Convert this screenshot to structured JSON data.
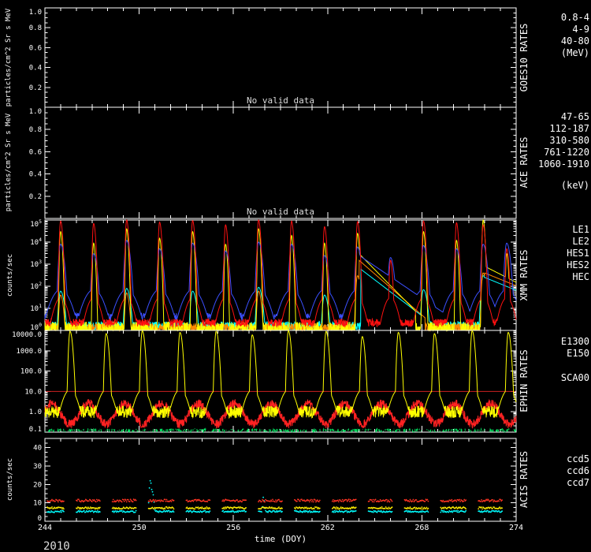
{
  "chart_data": {
    "type": "line",
    "year": "2010",
    "x_axis": {
      "label": "time (DOY)",
      "min": 244,
      "max": 274,
      "labeled_ticks": [
        244,
        250,
        256,
        262,
        268,
        274
      ],
      "tick_step": 1
    },
    "panels": [
      {
        "id": "goes10",
        "title": "GOES10 RATES",
        "ylabel": "particles/cm^2 Sr s MeV",
        "scale": "linear",
        "ylim": [
          0,
          1
        ],
        "yticks": [
          0,
          0.2,
          0.4,
          0.6,
          0.8,
          1.0
        ],
        "ytick_labels": [
          "",
          "0.2",
          "0.4",
          "0.6",
          "0.8",
          "1.0"
        ],
        "note": "No valid data",
        "right_labels": [
          {
            "text": "0.8-4",
            "color": "#8f8fff"
          },
          {
            "text": "4-9",
            "color": "#00ff00"
          },
          {
            "text": "40-80",
            "color": "#3c3cff"
          },
          {
            "text": "(MeV)",
            "color": "#ffffff"
          }
        ],
        "series": []
      },
      {
        "id": "ace",
        "title": "ACE RATES",
        "ylabel": "particles/cm^2 Sr s MeV",
        "scale": "linear",
        "ylim": [
          0,
          1
        ],
        "yticks": [
          0,
          0.2,
          0.4,
          0.6,
          0.8,
          1.0
        ],
        "ytick_labels": [
          "",
          "0.2",
          "0.4",
          "0.6",
          "0.8",
          "1.0"
        ],
        "note": "No valid data",
        "right_labels": [
          {
            "text": "47-65",
            "color": "#00ff00"
          },
          {
            "text": "112-187",
            "color": "#ffffff"
          },
          {
            "text": "310-580",
            "color": "#ff9900"
          },
          {
            "text": "761-1220",
            "color": "#dddddd"
          },
          {
            "text": "1060-1910",
            "color": "#ff2222"
          },
          {
            "text": "(keV)",
            "color": "#ffffff",
            "gap_before": 12
          }
        ],
        "series": []
      },
      {
        "id": "xmm",
        "title": "XMM RATES",
        "ylabel": "counts/sec",
        "scale": "log",
        "ylim": [
          1,
          100000
        ],
        "yticks": [
          1,
          10,
          100,
          1000,
          10000,
          100000
        ],
        "ytick_labels": [
          "10^0",
          "10^1",
          "10^2",
          "10^3",
          "10^4",
          "10^5"
        ],
        "spike_default_width": 0.04,
        "right_labels": [
          {
            "text": "LE1",
            "color": "#3c50ff"
          },
          {
            "text": "LE2",
            "color": "#00ffff"
          },
          {
            "text": "HES1",
            "color": "#ff1010"
          },
          {
            "text": "HES2",
            "color": "#ff8800"
          },
          {
            "text": "HEC",
            "color": "#ffffcc"
          }
        ],
        "series": [
          {
            "name": "LE2",
            "color": "#00ffff",
            "baseline": 1.6,
            "noise": 0.2,
            "spike_width": 0.08,
            "spikes": [
              [
                245.0,
                60
              ],
              [
                249.2,
                80
              ],
              [
                253.4,
                60
              ],
              [
                257.6,
                90
              ],
              [
                261.8,
                40
              ],
              [
                268.1,
                70
              ],
              [
                271.9,
                300
              ]
            ],
            "decays": [
              [
                264.1,
                600,
                0.8
              ],
              [
                272.0,
                250,
                1.5
              ]
            ]
          },
          {
            "name": "HES2",
            "color": "#ff8800",
            "baseline": 1.3,
            "noise": 0.2,
            "spike_width": 0.06,
            "spikes": [
              [
                245.0,
                40
              ],
              [
                249.2,
                50
              ],
              [
                257.6,
                60
              ],
              [
                263.9,
                300
              ],
              [
                271.9,
                400
              ]
            ],
            "decays": [
              [
                264.0,
                1500,
                0.7
              ],
              [
                272.0,
                400,
                1.5
              ]
            ]
          },
          {
            "name": "HEC",
            "color": "#ffff00",
            "baseline": 1.1,
            "noise": 0.35,
            "spike_width": 0.035,
            "spikes": [
              [
                245.0,
                30000
              ],
              [
                247.1,
                9000
              ],
              [
                249.2,
                40000
              ],
              [
                251.3,
                15000
              ],
              [
                253.4,
                30000
              ],
              [
                255.5,
                8000
              ],
              [
                257.6,
                40000
              ],
              [
                259.7,
                20000
              ],
              [
                261.8,
                9000
              ],
              [
                263.9,
                25000
              ],
              [
                268.1,
                30000
              ],
              [
                270.2,
                12000
              ],
              [
                271.9,
                100000
              ],
              [
                273.4,
                3000
              ]
            ],
            "decays": [
              [
                264.0,
                3000,
                0.6
              ],
              [
                272.0,
                800,
                1.2
              ]
            ]
          },
          {
            "name": "LE1",
            "color": "#3c50ff",
            "baseline": 4,
            "noise": 0.2,
            "spike_width": 0.07,
            "pedestal": [
              70,
              0.4
            ],
            "spikes": [
              [
                245.0,
                8000
              ],
              [
                247.1,
                3000
              ],
              [
                249.2,
                12000
              ],
              [
                251.3,
                5000
              ],
              [
                253.4,
                9000
              ],
              [
                255.5,
                4000
              ],
              [
                257.6,
                10000
              ],
              [
                259.7,
                8000
              ],
              [
                261.8,
                2500
              ],
              [
                263.9,
                6000
              ],
              [
                266.0,
                2000
              ],
              [
                268.1,
                7000
              ],
              [
                270.2,
                5000
              ],
              [
                271.9,
                8000
              ],
              [
                273.4,
                9000
              ]
            ],
            "decays": [
              [
                264.0,
                2500,
                0.9
              ]
            ]
          },
          {
            "name": "HES1",
            "color": "#ff1010",
            "baseline": 2.2,
            "noise": 0.18,
            "spike_width": 0.04,
            "pedestal": [
              30,
              0.28
            ],
            "spikes": [
              [
                245.0,
                90000
              ],
              [
                247.1,
                70000
              ],
              [
                249.2,
                100000
              ],
              [
                251.3,
                80000
              ],
              [
                253.4,
                95000
              ],
              [
                255.5,
                60000
              ],
              [
                257.6,
                100000
              ],
              [
                259.7,
                90000
              ],
              [
                261.8,
                50000
              ],
              [
                263.9,
                85000
              ],
              [
                266.0,
                1500
              ],
              [
                268.1,
                90000
              ],
              [
                270.2,
                75000
              ],
              [
                271.9,
                60000
              ],
              [
                273.4,
                5000
              ]
            ]
          }
        ]
      },
      {
        "id": "ephin",
        "title": "EPHIN RATES",
        "ylabel": "",
        "scale": "log",
        "ylim": [
          0.1,
          10000
        ],
        "yticks": [
          0.1,
          1,
          10,
          100,
          1000,
          10000
        ],
        "ytick_labels": [
          "0.1",
          "1.0",
          "10.0",
          "100.0",
          "1000.0",
          "10000.0"
        ],
        "spike_default_width": 0.05,
        "hlines": [
          {
            "y": 10,
            "color": "#cc2020"
          }
        ],
        "right_labels": [
          {
            "text": "E1300",
            "color": "#ff2222"
          },
          {
            "text": "E150",
            "color": "#ffff00"
          },
          {
            "text": "SCA00",
            "color": "#00e060",
            "gap_before": 16
          }
        ],
        "series": [
          {
            "name": "SCA00",
            "color": "#00e060",
            "baseline": 0.105,
            "noise": 0.15,
            "skip_below_min": true
          },
          {
            "name": "E1300",
            "color": "#ff2222",
            "baseline": 0.8,
            "noise": 0.22,
            "wander": [
              0.5,
              2.33,
              246.18
            ]
          },
          {
            "name": "E150",
            "color": "#ffff00",
            "baseline": 1.0,
            "noise": 0.3,
            "pedestal": [
              12,
              0.3
            ],
            "spikes": [
              [
                245.6,
                9000
              ],
              [
                247.9,
                7000
              ],
              [
                250.2,
                9500
              ],
              [
                252.6,
                8000
              ],
              [
                254.9,
                9000
              ],
              [
                257.2,
                6000
              ],
              [
                259.5,
                9500
              ],
              [
                261.9,
                9000
              ],
              [
                264.2,
                5000
              ],
              [
                266.5,
                8000
              ],
              [
                268.8,
                7000
              ],
              [
                271.2,
                9500
              ],
              [
                273.5,
                8000
              ]
            ]
          }
        ]
      },
      {
        "id": "acis",
        "title": "ACIS RATES",
        "ylabel": "counts/sec",
        "scale": "linear",
        "ylim": [
          0,
          45
        ],
        "yticks": [
          0,
          10,
          20,
          30,
          40
        ],
        "ytick_labels": [
          "0",
          "10",
          "20",
          "30",
          "40"
        ],
        "gap_times": [
          245.6,
          247.9,
          250.2,
          252.6,
          254.9,
          257.2,
          259.5,
          261.9,
          264.2,
          266.5,
          268.8,
          271.2,
          273.5
        ],
        "gap_halfwidth": 0.38,
        "right_labels": [
          {
            "text": "ccd5",
            "color": "#ff3322"
          },
          {
            "text": "ccd6",
            "color": "#ffcc00"
          },
          {
            "text": "ccd7",
            "color": "#00ffff"
          }
        ],
        "series": [
          {
            "name": "ccd7",
            "color": "#00ffff",
            "baseline": 5.3,
            "noise": 0.5,
            "style": "dots",
            "range": [
              244.15,
              273.85
            ],
            "spikes": [
              [
                250.7,
                22,
                0.08
              ],
              [
                250.85,
                16,
                0.06
              ],
              [
                257.9,
                13,
                0.05
              ]
            ]
          },
          {
            "name": "ccd6",
            "color": "#ffee00",
            "baseline": 7.2,
            "noise": 0.55,
            "style": "dots",
            "range": [
              244.15,
              273.85
            ]
          },
          {
            "name": "ccd5",
            "color": "#ff3322",
            "baseline": 11.2,
            "noise": 0.7,
            "style": "dots",
            "range": [
              244.15,
              273.85
            ]
          }
        ]
      }
    ]
  }
}
